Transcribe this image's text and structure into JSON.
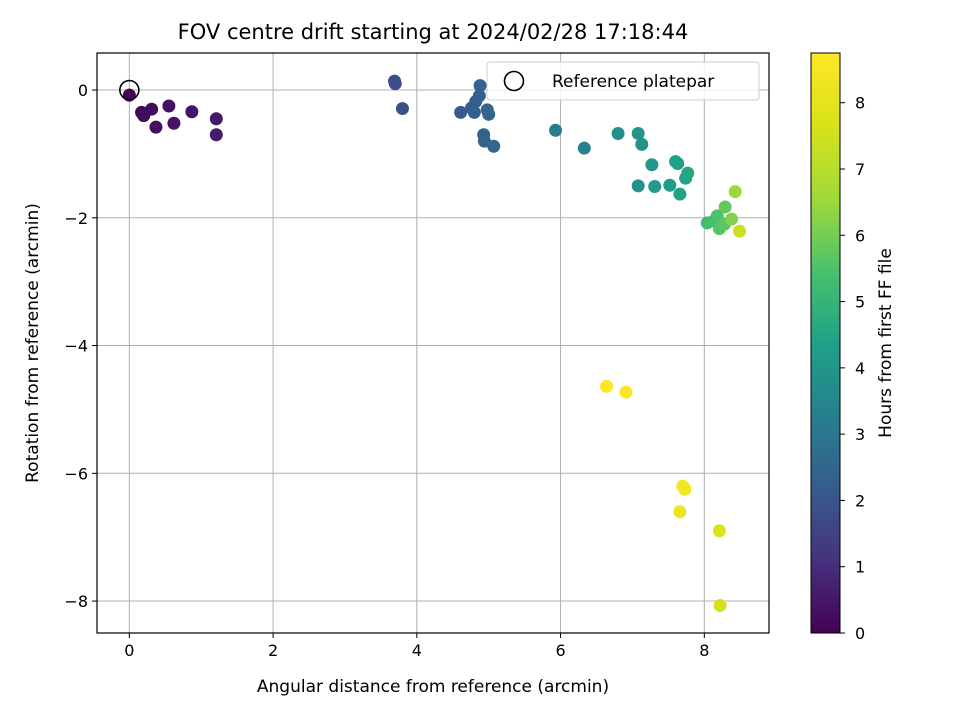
{
  "chart_data": {
    "type": "scatter",
    "title": "FOV centre drift starting at 2024/02/28 17:18:44",
    "xlabel": "Angular distance from reference (arcmin)",
    "ylabel": "Rotation from reference (arcmin)",
    "xlim": [
      -0.45,
      8.9
    ],
    "ylim": [
      -8.5,
      0.58
    ],
    "xticks": [
      "0",
      "2",
      "4",
      "6",
      "8"
    ],
    "xtick_values": [
      0,
      2,
      4,
      6,
      8
    ],
    "yticks": [
      "0",
      "−2",
      "−4",
      "−6",
      "−8"
    ],
    "ytick_values": [
      0,
      -2,
      -4,
      -6,
      -8
    ],
    "grid": true,
    "colormap": "viridis",
    "colorbar": {
      "label": "Hours from first FF file",
      "range": [
        0,
        8.75
      ],
      "ticks": [
        "0",
        "1",
        "2",
        "3",
        "4",
        "5",
        "6",
        "7",
        "8"
      ],
      "tick_values": [
        0,
        1,
        2,
        3,
        4,
        5,
        6,
        7,
        8
      ]
    },
    "legend": {
      "entries": [
        "Reference platepar"
      ],
      "placement": "upper right"
    },
    "reference_point": {
      "x": 0,
      "y": 0
    },
    "points": [
      {
        "x": 0.0,
        "y": -0.08,
        "hours": 0.05
      },
      {
        "x": 0.17,
        "y": -0.35,
        "hours": 0.15
      },
      {
        "x": 0.2,
        "y": -0.4,
        "hours": 0.2
      },
      {
        "x": 0.31,
        "y": -0.3,
        "hours": 0.25
      },
      {
        "x": 0.37,
        "y": -0.58,
        "hours": 0.3
      },
      {
        "x": 0.55,
        "y": -0.25,
        "hours": 0.35
      },
      {
        "x": 0.62,
        "y": -0.52,
        "hours": 0.4
      },
      {
        "x": 0.87,
        "y": -0.34,
        "hours": 0.45
      },
      {
        "x": 1.21,
        "y": -0.45,
        "hours": 0.55
      },
      {
        "x": 1.21,
        "y": -0.7,
        "hours": 0.6
      },
      {
        "x": 3.69,
        "y": 0.14,
        "hours": 1.8
      },
      {
        "x": 3.7,
        "y": 0.1,
        "hours": 1.82
      },
      {
        "x": 3.8,
        "y": -0.29,
        "hours": 1.85
      },
      {
        "x": 4.61,
        "y": -0.35,
        "hours": 2.2
      },
      {
        "x": 4.76,
        "y": -0.28,
        "hours": 2.25
      },
      {
        "x": 4.8,
        "y": -0.35,
        "hours": 2.28
      },
      {
        "x": 4.82,
        "y": -0.18,
        "hours": 2.3
      },
      {
        "x": 4.87,
        "y": -0.09,
        "hours": 2.32
      },
      {
        "x": 4.88,
        "y": 0.07,
        "hours": 2.35
      },
      {
        "x": 4.93,
        "y": -0.7,
        "hours": 2.4
      },
      {
        "x": 4.94,
        "y": -0.8,
        "hours": 2.42
      },
      {
        "x": 4.98,
        "y": -0.31,
        "hours": 2.45
      },
      {
        "x": 5.0,
        "y": -0.38,
        "hours": 2.48
      },
      {
        "x": 5.07,
        "y": -0.88,
        "hours": 2.5
      },
      {
        "x": 5.93,
        "y": -0.63,
        "hours": 3.2
      },
      {
        "x": 6.33,
        "y": -0.91,
        "hours": 3.4
      },
      {
        "x": 6.8,
        "y": -0.68,
        "hours": 3.8
      },
      {
        "x": 7.08,
        "y": -0.68,
        "hours": 3.95
      },
      {
        "x": 7.13,
        "y": -0.85,
        "hours": 4.0
      },
      {
        "x": 7.08,
        "y": -1.5,
        "hours": 3.9
      },
      {
        "x": 7.27,
        "y": -1.17,
        "hours": 4.1
      },
      {
        "x": 7.31,
        "y": -1.51,
        "hours": 4.15
      },
      {
        "x": 7.52,
        "y": -1.49,
        "hours": 4.25
      },
      {
        "x": 7.6,
        "y": -1.12,
        "hours": 4.3
      },
      {
        "x": 7.63,
        "y": -1.15,
        "hours": 4.35
      },
      {
        "x": 7.66,
        "y": -1.63,
        "hours": 4.4
      },
      {
        "x": 7.74,
        "y": -1.38,
        "hours": 4.45
      },
      {
        "x": 7.77,
        "y": -1.3,
        "hours": 4.5
      },
      {
        "x": 8.04,
        "y": -2.08,
        "hours": 5.3
      },
      {
        "x": 8.13,
        "y": -2.05,
        "hours": 5.4
      },
      {
        "x": 8.18,
        "y": -1.97,
        "hours": 5.5
      },
      {
        "x": 8.21,
        "y": -2.17,
        "hours": 5.6
      },
      {
        "x": 8.28,
        "y": -2.1,
        "hours": 5.7
      },
      {
        "x": 8.29,
        "y": -1.83,
        "hours": 5.8
      },
      {
        "x": 8.38,
        "y": -2.02,
        "hours": 6.2
      },
      {
        "x": 8.43,
        "y": -1.59,
        "hours": 6.5
      },
      {
        "x": 8.49,
        "y": -2.21,
        "hours": 7.4
      },
      {
        "x": 6.64,
        "y": -4.64,
        "hours": 8.7
      },
      {
        "x": 6.91,
        "y": -4.73,
        "hours": 8.65
      },
      {
        "x": 7.7,
        "y": -6.2,
        "hours": 8.5
      },
      {
        "x": 7.73,
        "y": -6.25,
        "hours": 8.45
      },
      {
        "x": 7.66,
        "y": -6.6,
        "hours": 8.3
      },
      {
        "x": 8.21,
        "y": -6.9,
        "hours": 7.8
      },
      {
        "x": 8.22,
        "y": -8.07,
        "hours": 7.6
      }
    ]
  }
}
